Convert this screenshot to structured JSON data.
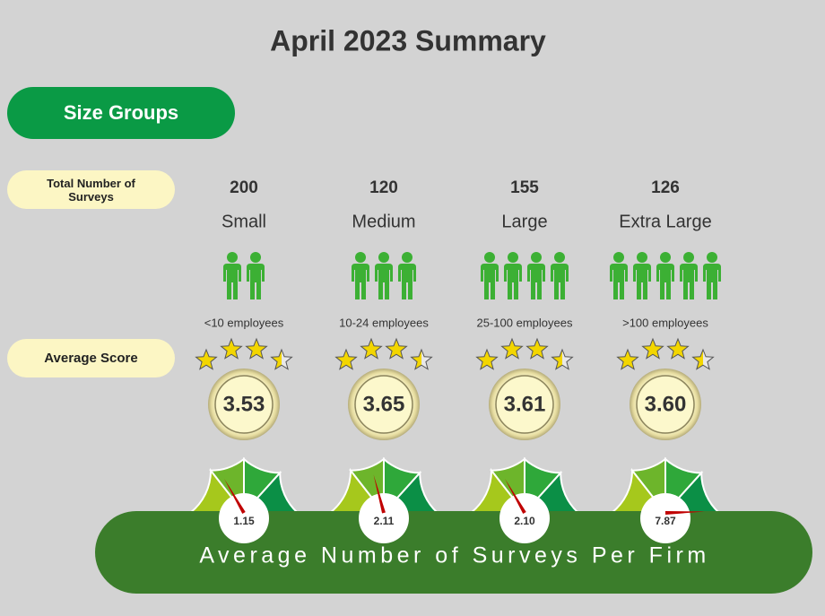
{
  "title": "April 2023 Summary",
  "section_label": "Size Groups",
  "row_labels": {
    "total": "Total Number of Surveys",
    "score": "Average Score"
  },
  "groups": [
    {
      "total": "200",
      "name": "Small",
      "employees": "<10 employees",
      "score": "3.53",
      "surveys_per_firm": "1.15"
    },
    {
      "total": "120",
      "name": "Medium",
      "employees": "10-24 employees",
      "score": "3.65",
      "surveys_per_firm": "2.11"
    },
    {
      "total": "155",
      "name": "Large",
      "employees": "25-100 employees",
      "score": "3.61",
      "surveys_per_firm": "2.10"
    },
    {
      "total": "126",
      "name": "Extra Large",
      "employees": ">100 employees",
      "score": "3.60",
      "surveys_per_firm": "7.87"
    }
  ],
  "banner": "Average Number of Surveys Per Firm"
}
